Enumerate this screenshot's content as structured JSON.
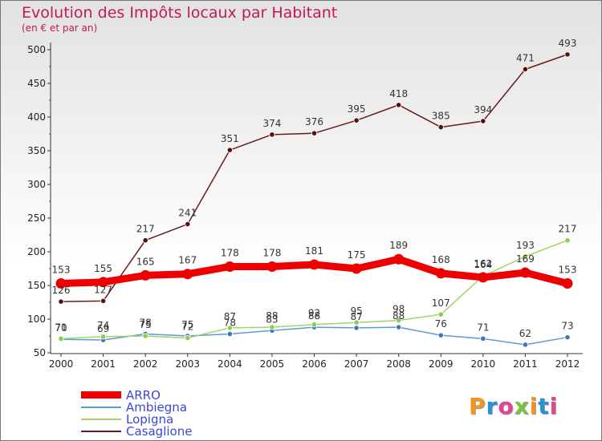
{
  "header": {
    "title": "Evolution des Impôts locaux par Habitant",
    "subtitle": "(en € et par an)"
  },
  "logo": {
    "text": "Proxiti",
    "colors": [
      "#f7931e",
      "#2b8fd6",
      "#e84393",
      "#7cc242",
      "#f7931e",
      "#2b8fd6",
      "#e84393"
    ]
  },
  "chart_data": {
    "type": "line",
    "x": [
      "2000",
      "2001",
      "2002",
      "2003",
      "2004",
      "2005",
      "2006",
      "2007",
      "2008",
      "2009",
      "2010",
      "2011",
      "2012"
    ],
    "ylim": [
      50,
      500
    ],
    "yticks": [
      50,
      100,
      150,
      200,
      250,
      300,
      350,
      400,
      450,
      500
    ],
    "grid": false,
    "legend_position": "bottom-left",
    "series": [
      {
        "name": "ARRO",
        "color": "#ee0000",
        "values": [
          153,
          155,
          165,
          167,
          178,
          178,
          181,
          175,
          189,
          168,
          162,
          169,
          153
        ]
      },
      {
        "name": "Ambiegna",
        "color": "#5b9bd5",
        "values": [
          70,
          69,
          78,
          75,
          78,
          83,
          88,
          87,
          88,
          76,
          71,
          62,
          73
        ]
      },
      {
        "name": "Lopigna",
        "color": "#9ed56b",
        "values": [
          71,
          74,
          75,
          72,
          87,
          88,
          92,
          95,
          98,
          107,
          164,
          193,
          217
        ]
      },
      {
        "name": "Casaglione",
        "color": "#6b1a1a",
        "values": [
          126,
          127,
          217,
          241,
          351,
          374,
          376,
          395,
          418,
          385,
          394,
          471,
          493
        ]
      }
    ]
  }
}
